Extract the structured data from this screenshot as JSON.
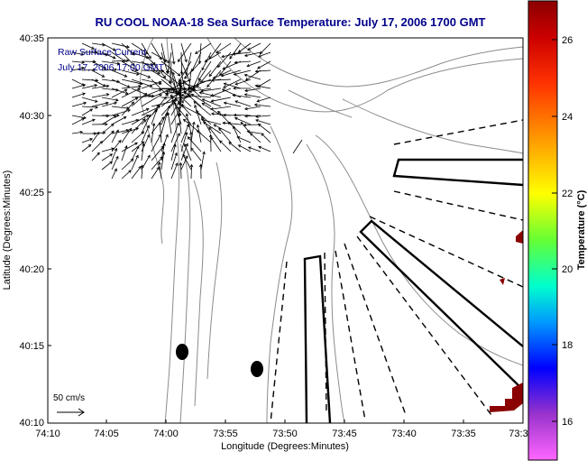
{
  "title": "RU COOL  NOAA-18  Sea Surface Temperature:  July 17, 2006 1700 GMT",
  "inset_legend": {
    "line1": "Raw Surface Current",
    "line2": "July 17, 2006 17:00 GMT"
  },
  "scale_label": "50 cm/s",
  "x_axis": {
    "label": "Longitude (Degrees:Minutes)",
    "ticks": [
      "74:10",
      "74:05",
      "74:00",
      "73:55",
      "73:50",
      "73:45",
      "73:40",
      "73:35",
      "73:3"
    ]
  },
  "y_axis": {
    "label": "Latitude (Degrees:Minutes)",
    "ticks": [
      "40:35",
      "40:30",
      "40:25",
      "40:20",
      "40:15",
      "40:10"
    ]
  },
  "colorbar": {
    "label": "Temperature (°C)",
    "ticks": [
      "26",
      "24",
      "22",
      "20",
      "18",
      "16"
    ],
    "colors": [
      "#8b0000",
      "#ff0000",
      "#ff8c00",
      "#ffff00",
      "#00ff00",
      "#00ffff",
      "#0000ff",
      "#8a2be2",
      "#ff00ff"
    ]
  },
  "colors": {
    "title": "#00008b",
    "legend_text": "#00008b",
    "sst_warm": "#8b0000",
    "contour": "#8c8c8c",
    "frame": "#000000"
  }
}
